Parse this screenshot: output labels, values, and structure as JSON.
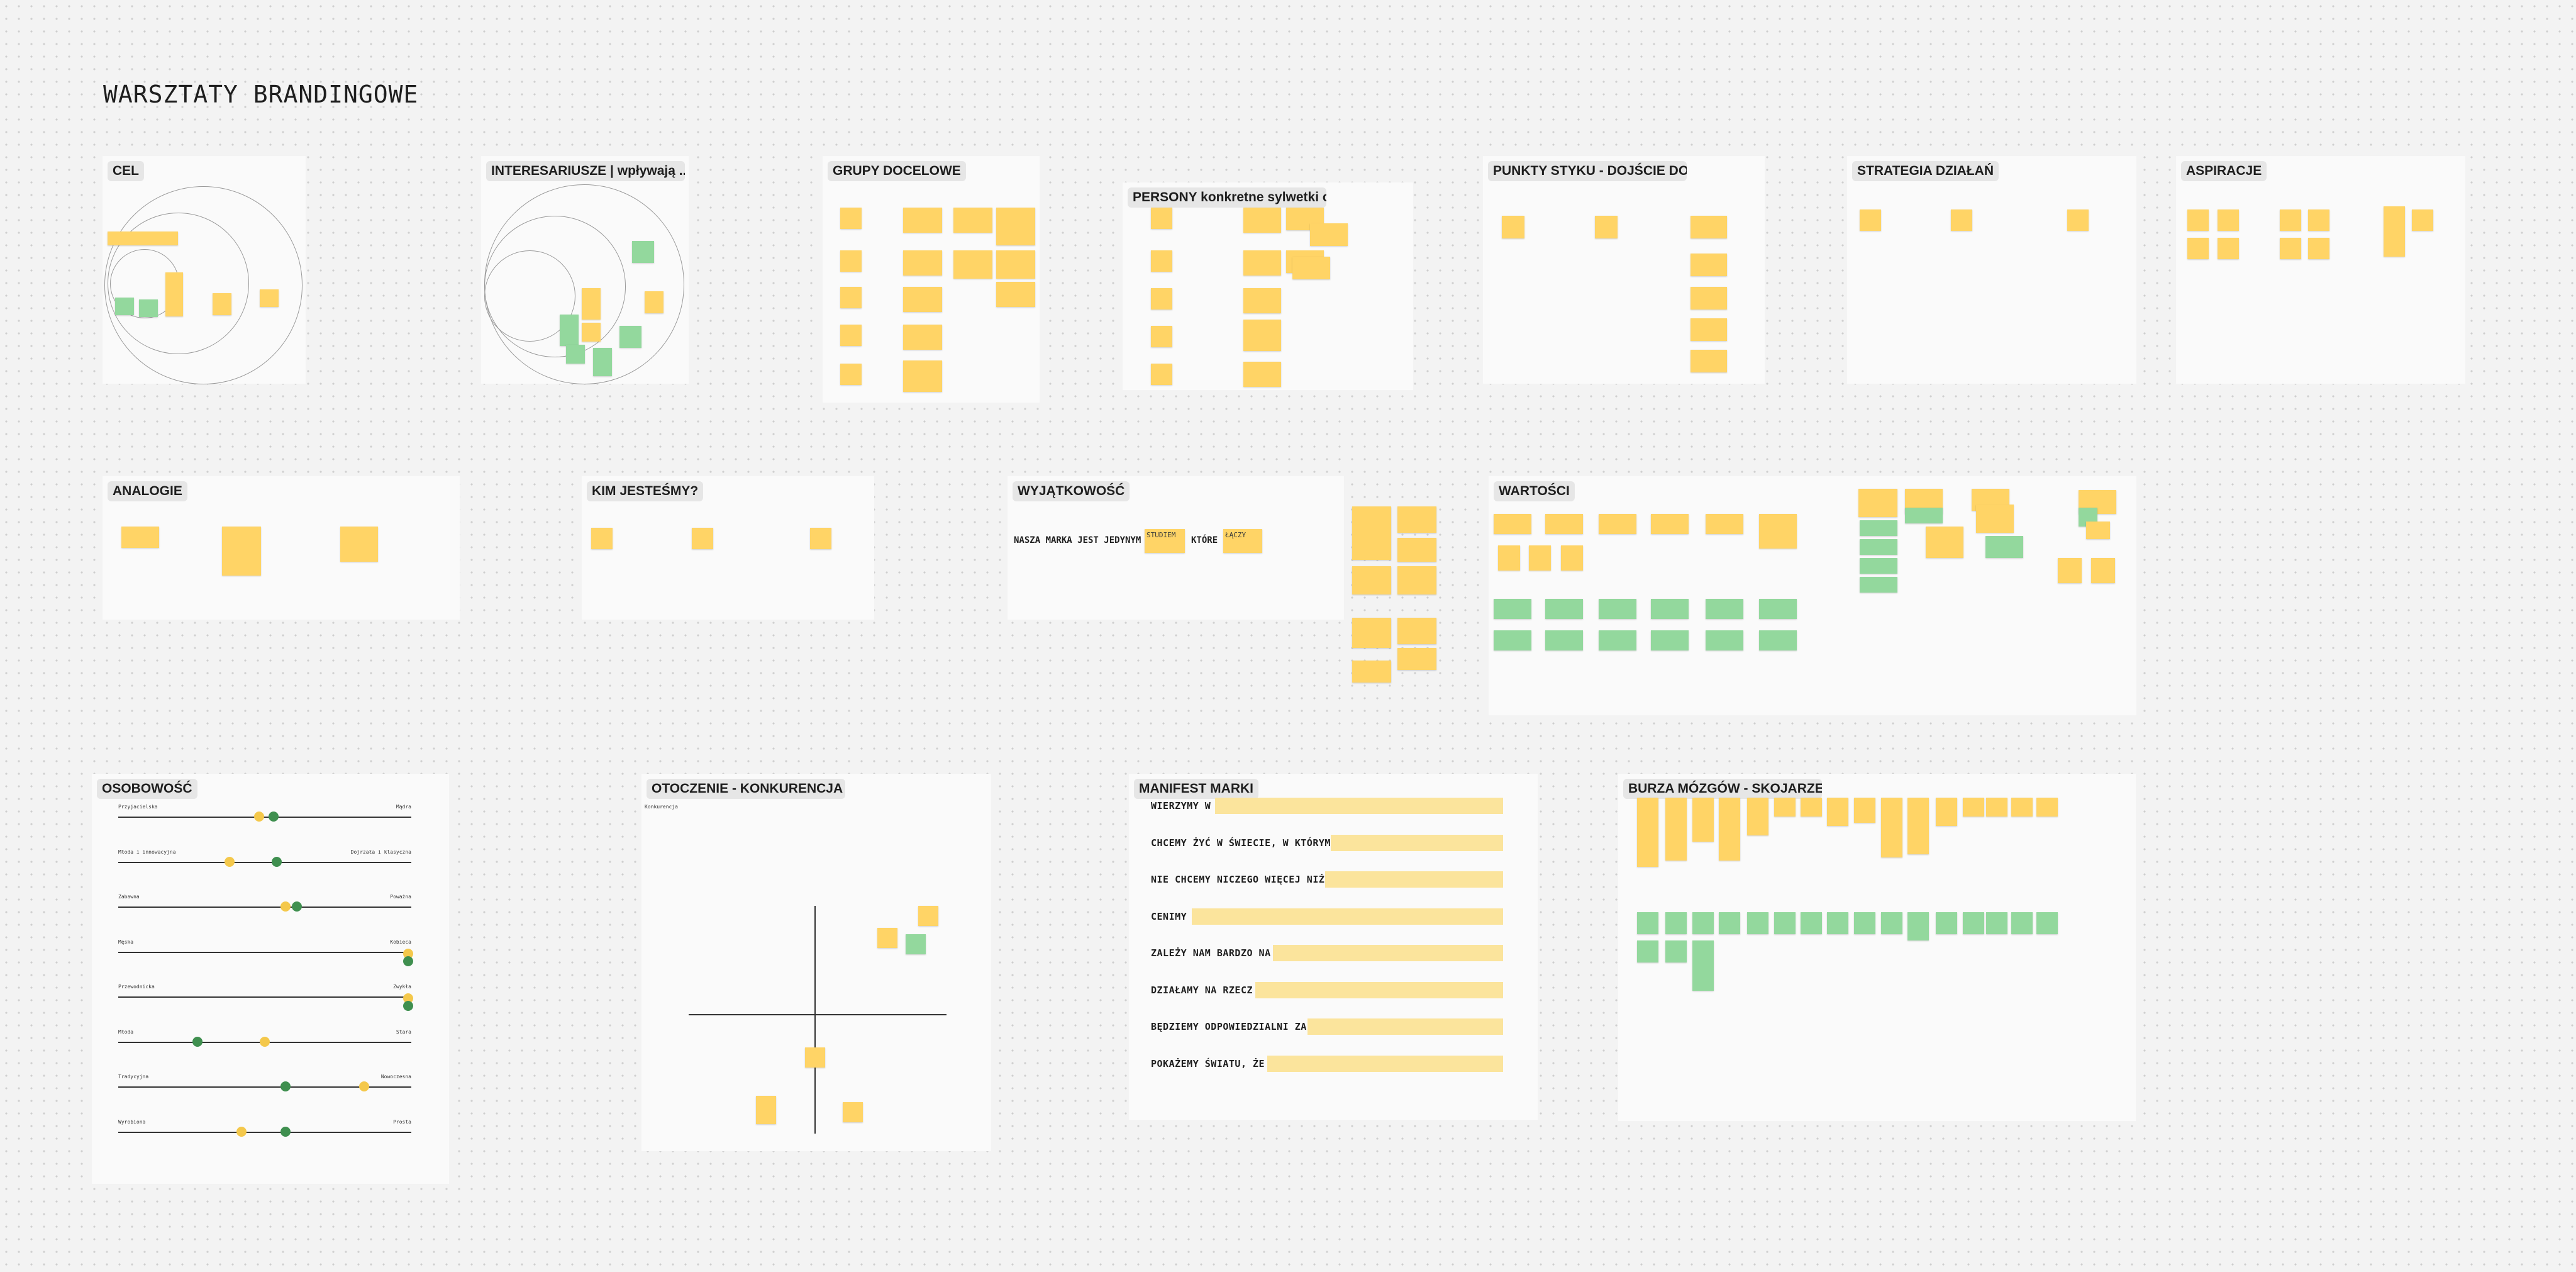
{
  "board": {
    "title": "WARSZTATY BRANDINGOWE"
  },
  "frames": {
    "cel": {
      "title": "CEL"
    },
    "interesariusze": {
      "title": "INTERESARIUSZE | wpływają ..."
    },
    "grupy": {
      "title": "GRUPY DOCELOWE"
    },
    "persony": {
      "title": "PERSONY konkretne sylwetki osób"
    },
    "punkty": {
      "title": "PUNKTY STYKU - DOJŚCIE DO KLIENTA"
    },
    "strategia": {
      "title": "STRATEGIA DZIAŁAŃ"
    },
    "aspiracje": {
      "title": "ASPIRACJE"
    },
    "analogie": {
      "title": "ANALOGIE"
    },
    "kim": {
      "title": "KIM JESTEŚMY?"
    },
    "wyjatkowosc": {
      "title": "WYJĄTKOWOŚĆ",
      "sentence_start": "NASZA MARKA JEST JEDYNYM",
      "note1": "STUDIEM",
      "middle": "KTÓRE",
      "note2": "ŁĄCZY"
    },
    "wartosci": {
      "title": "WARTOŚCI"
    },
    "osobowosc": {
      "title": "OSOBOWOŚĆ",
      "scales": [
        {
          "left": "Przyjacielska",
          "right": "Mądra",
          "yellow": 0.48,
          "green": 0.53
        },
        {
          "left": "Młoda i innowacyjna",
          "right": "Dojrzała i klasyczna",
          "yellow": 0.38,
          "green": 0.54
        },
        {
          "left": "Zabawna",
          "right": "Poważna",
          "yellow": 0.57,
          "green": 0.61
        },
        {
          "left": "Męska",
          "right": "Kobieca",
          "yellow": 0.99,
          "green": 0.99
        },
        {
          "left": "Przewodnicka",
          "right": "Zwykła",
          "yellow": 0.99,
          "green": 0.99
        },
        {
          "left": "Młoda",
          "right": "Stara",
          "yellow": 0.5,
          "green": 0.27
        },
        {
          "left": "Tradycyjna",
          "right": "Nowoczesna",
          "yellow": 0.84,
          "green": 0.57
        },
        {
          "left": "Wyrobiona",
          "right": "Prosta",
          "yellow": 0.42,
          "green": 0.57
        }
      ]
    },
    "otoczenie": {
      "title": "OTOCZENIE - KONKURENCJA",
      "top_left_label": "Konkurencja"
    },
    "manifest": {
      "title": "MANIFEST MARKI",
      "lines": [
        "WIERZYMY W",
        "CHCEMY ŻYĆ W ŚWIECIE, W KTÓRYM",
        "NIE CHCEMY NICZEGO WIĘCEJ NIŻ",
        "CENIMY",
        "ZALEŻY NAM BARDZO NA",
        "DZIAŁAMY NA RZECZ",
        "BĘDZIEMY ODPOWIEDZIALNI ZA",
        "POKAŻEMY ŚWIATU, ŻE"
      ]
    },
    "burza": {
      "title": "BURZA MÓZGÓW - SKOJARZENIA"
    }
  },
  "colors": {
    "note_yellow": "#ffd466",
    "note_green": "#93d89d",
    "frame_bg": "#fafafa",
    "manifest_bar": "#fbe49c"
  }
}
